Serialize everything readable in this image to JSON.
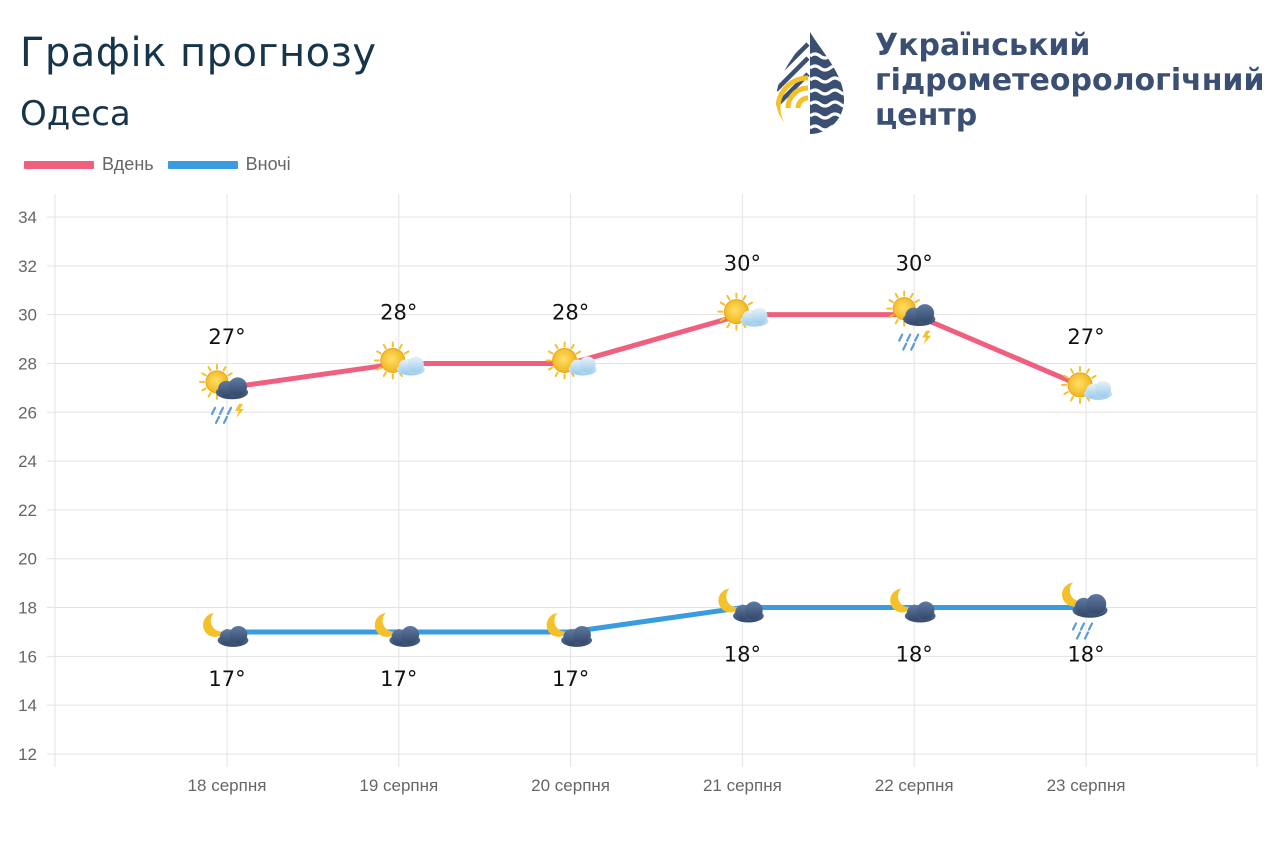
{
  "header": {
    "title": "Графік прогнозу",
    "city": "Одеса"
  },
  "organization": {
    "line1": "Український",
    "line2": "гідрометеорологічний",
    "line3": "центр",
    "logo_icon": "water-drop-logo-icon"
  },
  "legend": {
    "day_label": "Вдень",
    "night_label": "Вночі"
  },
  "colors": {
    "day": "#f0607e",
    "night": "#3a9be0",
    "title": "#16344a",
    "brand": "#3b4f73",
    "accent_yellow": "#f4c12b"
  },
  "chart_data": {
    "type": "line",
    "categories": [
      "18 серпня",
      "19 серпня",
      "20 серпня",
      "21 серпня",
      "22 серпня",
      "23 серпня"
    ],
    "series": [
      {
        "name": "Вдень",
        "values": [
          27,
          28,
          28,
          30,
          30,
          27
        ],
        "labels": [
          "27°",
          "28°",
          "28°",
          "30°",
          "30°",
          "27°"
        ],
        "icons": [
          "sun-cloud-thunderstorm-icon",
          "sun-cloud-icon",
          "sun-cloud-icon",
          "sun-cloud-icon",
          "sun-cloud-thunderstorm-icon",
          "sun-cloud-icon"
        ]
      },
      {
        "name": "Вночі",
        "values": [
          17,
          17,
          17,
          18,
          18,
          18
        ],
        "labels": [
          "17°",
          "17°",
          "17°",
          "18°",
          "18°",
          "18°"
        ],
        "icons": [
          "moon-cloud-icon",
          "moon-cloud-icon",
          "moon-cloud-icon",
          "moon-cloud-icon",
          "moon-cloud-icon",
          "moon-cloud-rain-icon"
        ]
      }
    ],
    "y_ticks": [
      12,
      14,
      16,
      18,
      20,
      22,
      24,
      26,
      28,
      30,
      32,
      34
    ],
    "ylim": [
      12,
      35
    ],
    "grid": true,
    "legend_position": "top-left"
  }
}
